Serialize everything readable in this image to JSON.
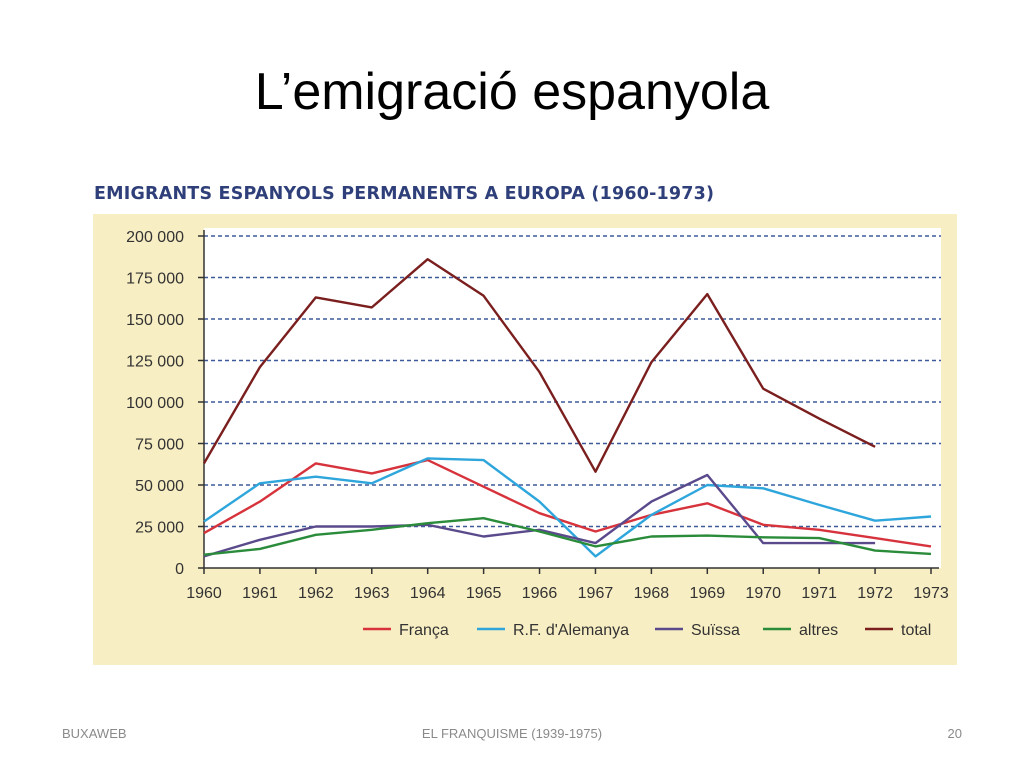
{
  "slide": {
    "title": "L’emigració espanyola",
    "footer_left": "BUXAWEB",
    "footer_center": "EL FRANQUISME (1939-1975)",
    "footer_right": "20"
  },
  "chart_data": {
    "type": "line",
    "title": "EMIGRANTS ESPANYOLS PERMANENTS A EUROPA (1960-1973)",
    "xlabel": "",
    "ylabel": "",
    "x": [
      "1960",
      "1961",
      "1962",
      "1963",
      "1964",
      "1965",
      "1966",
      "1967",
      "1968",
      "1969",
      "1970",
      "1971",
      "1972",
      "1973"
    ],
    "y_ticks": [
      "0",
      "25 000",
      "50 000",
      "75 000",
      "100 000",
      "125 000",
      "150 000",
      "175 000",
      "200 000"
    ],
    "ylim": [
      0,
      200000
    ],
    "grid": "horizontal-dashed",
    "legend_position": "bottom",
    "colors": {
      "background": "#f8eec3",
      "plot_background": "#ffffff",
      "grid": "#3d5a9a",
      "title": "#2f3f7a"
    },
    "series": [
      {
        "name": "França",
        "color": "#d6333c",
        "values": [
          21000,
          40000,
          63000,
          57000,
          65000,
          49000,
          33000,
          22000,
          32000,
          39000,
          26000,
          23000,
          18000,
          13000
        ]
      },
      {
        "name": "R.F. d'Alemanya",
        "color": "#2ea6dc",
        "values": [
          28000,
          51000,
          55000,
          51000,
          66000,
          65000,
          40000,
          7000,
          32000,
          50000,
          48000,
          38000,
          28500,
          31000
        ]
      },
      {
        "name": "Suïssa",
        "color": "#5a4a8c",
        "values": [
          7000,
          17000,
          25000,
          25000,
          26000,
          19000,
          23000,
          15000,
          40000,
          56000,
          15000,
          15000,
          15000,
          null
        ]
      },
      {
        "name": "altres",
        "color": "#2a8c3a",
        "values": [
          8000,
          11500,
          20000,
          23000,
          27000,
          30000,
          22000,
          13000,
          19000,
          19500,
          18500,
          18000,
          10500,
          8500
        ]
      },
      {
        "name": "total",
        "color": "#7a1e1e",
        "values": [
          63000,
          121000,
          163000,
          157000,
          186000,
          164000,
          118000,
          58000,
          124000,
          165000,
          108000,
          90000,
          73000,
          null
        ]
      }
    ]
  }
}
